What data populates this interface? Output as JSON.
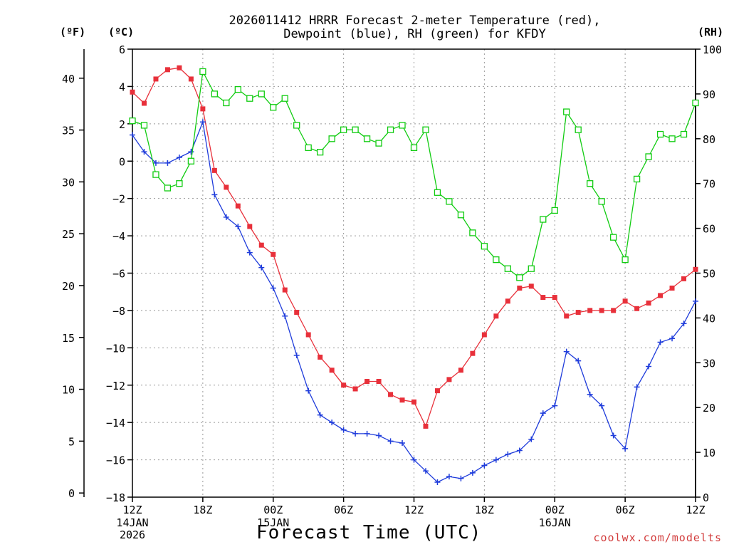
{
  "title": {
    "line1": "2026011412 HRRR Forecast 2-meter Temperature (red),",
    "line2": "Dewpoint (blue), RH (green) for KFDY"
  },
  "units": {
    "fahrenheit": "(ºF)",
    "celsius": "(ºC)",
    "rh": "(RH)"
  },
  "xlabel": "Forecast Time (UTC)",
  "credit": "coolwx.com/modelts",
  "colors": {
    "temperature": "#e8303a",
    "dewpoint": "#1f3cdb",
    "rh": "#11cc11",
    "grid": "#999999",
    "credit": "#d23c3c"
  },
  "chart_data": {
    "type": "line",
    "x": [
      0,
      1,
      2,
      3,
      4,
      5,
      6,
      7,
      8,
      9,
      10,
      11,
      12,
      13,
      14,
      15,
      16,
      17,
      18,
      19,
      20,
      21,
      22,
      23,
      24,
      25,
      26,
      27,
      28,
      29,
      30,
      31,
      32,
      33,
      34,
      35,
      36,
      37,
      38,
      39,
      40,
      41,
      42,
      43,
      44,
      45,
      46,
      47,
      48
    ],
    "x_unit": "forecast hour from 2026-01-14 12Z",
    "xlim": [
      0,
      48
    ],
    "x_ticks": [
      {
        "x": 0,
        "label": "12Z",
        "sub": [
          "14JAN",
          "2026"
        ]
      },
      {
        "x": 6,
        "label": "18Z",
        "sub": []
      },
      {
        "x": 12,
        "label": "00Z",
        "sub": [
          "15JAN"
        ]
      },
      {
        "x": 18,
        "label": "06Z",
        "sub": []
      },
      {
        "x": 24,
        "label": "12Z",
        "sub": []
      },
      {
        "x": 30,
        "label": "18Z",
        "sub": []
      },
      {
        "x": 36,
        "label": "00Z",
        "sub": [
          "16JAN"
        ]
      },
      {
        "x": 42,
        "label": "06Z",
        "sub": []
      },
      {
        "x": 48,
        "label": "12Z",
        "sub": []
      }
    ],
    "celsius_axis": {
      "label": "(ºC)",
      "ylim": [
        -18,
        6
      ],
      "ticks": [
        6,
        4,
        2,
        0,
        -2,
        -4,
        -6,
        -8,
        -10,
        -12,
        -14,
        -16,
        -18
      ]
    },
    "fahrenheit_axis": {
      "label": "(ºF)",
      "ticks": [
        40,
        35,
        30,
        25,
        20,
        15,
        10,
        5,
        0
      ]
    },
    "rh_axis": {
      "label": "(RH)",
      "ylim": [
        0,
        100
      ],
      "ticks": [
        100,
        90,
        80,
        70,
        60,
        50,
        40,
        30,
        20,
        10,
        0
      ]
    },
    "series": [
      {
        "name": "Temperature",
        "axis": "celsius",
        "color": "#e8303a",
        "marker": "filled-square",
        "values": [
          3.7,
          3.1,
          4.4,
          4.9,
          5.0,
          4.4,
          2.8,
          -0.5,
          -1.4,
          -2.4,
          -3.5,
          -4.5,
          -5.0,
          -6.9,
          -8.1,
          -9.3,
          -10.5,
          -11.2,
          -12.0,
          -12.2,
          -11.8,
          -11.8,
          -12.5,
          -12.8,
          -12.9,
          -14.2,
          -12.3,
          -11.7,
          -11.2,
          -10.3,
          -9.3,
          -8.3,
          -7.5,
          -6.8,
          -6.7,
          -7.3,
          -7.3,
          -8.3,
          -8.1,
          -8.0,
          -8.0,
          -8.0,
          -7.5,
          -7.9,
          -7.6,
          -7.2,
          -6.8,
          -6.3,
          -5.8
        ]
      },
      {
        "name": "Dewpoint",
        "axis": "celsius",
        "color": "#1f3cdb",
        "marker": "plus",
        "values": [
          1.4,
          0.5,
          -0.1,
          -0.1,
          0.2,
          0.5,
          2.1,
          -1.8,
          -3.0,
          -3.5,
          -4.9,
          -5.7,
          -6.8,
          -8.3,
          -10.4,
          -12.3,
          -13.6,
          -14.0,
          -14.4,
          -14.6,
          -14.6,
          -14.7,
          -15.0,
          -15.1,
          -16.0,
          -16.6,
          -17.2,
          -16.9,
          -17.0,
          -16.7,
          -16.3,
          -16.0,
          -15.7,
          -15.5,
          -14.9,
          -13.5,
          -13.1,
          -10.2,
          -10.7,
          -12.5,
          -13.1,
          -14.7,
          -15.4,
          -12.1,
          -11.0,
          -9.7,
          -9.5,
          -8.7,
          -7.5
        ]
      },
      {
        "name": "RH",
        "axis": "rh",
        "color": "#11cc11",
        "marker": "open-square",
        "values": [
          84,
          83,
          72,
          69,
          70,
          75,
          95,
          90,
          88,
          91,
          89,
          90,
          87,
          89,
          83,
          78,
          77,
          80,
          82,
          82,
          80,
          79,
          82,
          83,
          78,
          82,
          68,
          66,
          63,
          59,
          56,
          53,
          51,
          49,
          51,
          62,
          64,
          86,
          82,
          70,
          66,
          58,
          53,
          71,
          76,
          81,
          80,
          81,
          88
        ]
      }
    ]
  }
}
